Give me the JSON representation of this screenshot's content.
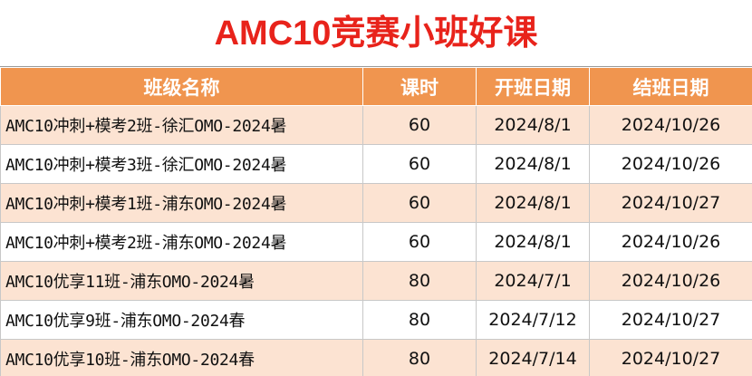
{
  "header": {
    "title": "AMC10竞赛小班好课"
  },
  "table": {
    "columns": [
      "班级名称",
      "课时",
      "开班日期",
      "结班日期"
    ],
    "rows": [
      [
        "AMC10冲刺+模考2班-徐汇OMO-2024暑",
        "60",
        "2024/8/1",
        "2024/10/26"
      ],
      [
        "AMC10冲刺+模考3班-徐汇OMO-2024暑",
        "60",
        "2024/8/1",
        "2024/10/26"
      ],
      [
        "AMC10冲刺+模考1班-浦东OMO-2024暑",
        "60",
        "2024/8/1",
        "2024/10/27"
      ],
      [
        "AMC10冲刺+模考2班-浦东OMO-2024暑",
        "60",
        "2024/8/1",
        "2024/10/26"
      ],
      [
        "AMC10优享11班-浦东OMO-2024暑",
        "80",
        "2024/7/1",
        "2024/10/26"
      ],
      [
        "AMC10优享9班-浦东OMO-2024春",
        "80",
        "2024/7/12",
        "2024/10/27"
      ],
      [
        "AMC10优享10班-浦东OMO-2024春",
        "80",
        "2024/7/14",
        "2024/10/27"
      ]
    ]
  }
}
